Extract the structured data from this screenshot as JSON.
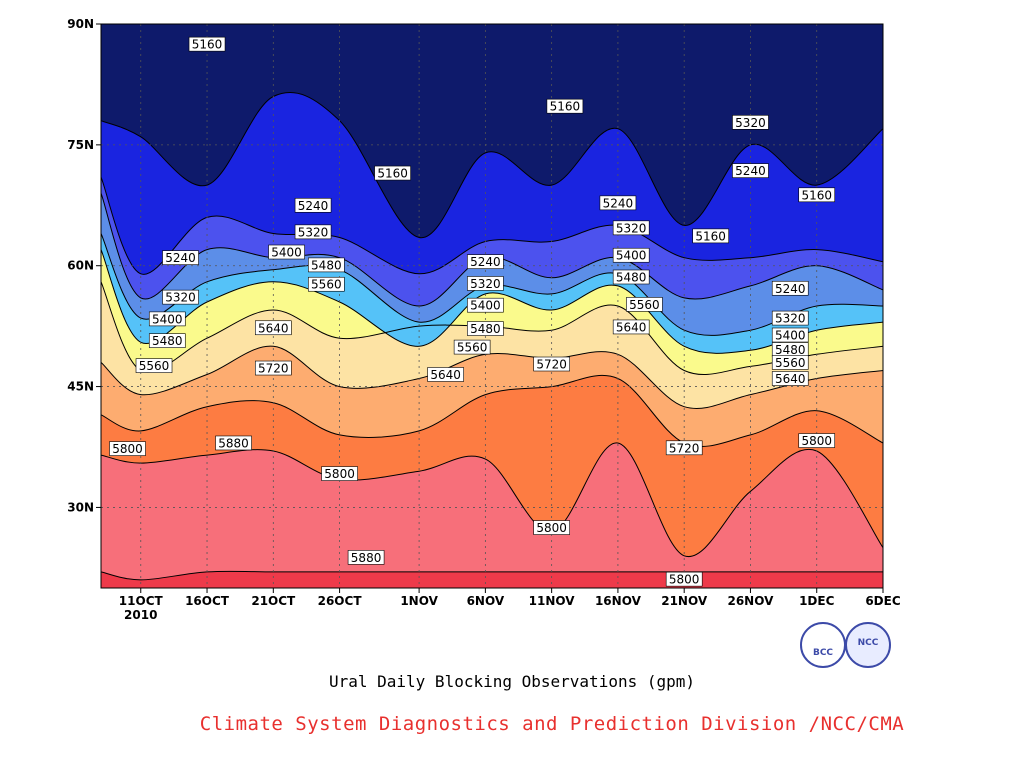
{
  "chart_data": {
    "type": "contour",
    "title": "Ural Daily Blocking Observations (gpm)",
    "x_tick_labels": [
      "11OCT",
      "16OCT",
      "21OCT",
      "26OCT",
      "1NOV",
      "6NOV",
      "11NOV",
      "16NOV",
      "21NOV",
      "26NOV",
      "1DEC",
      "6DEC"
    ],
    "x_year_label": "2010",
    "y_tick_labels": [
      "30N",
      "45N",
      "60N",
      "75N",
      "90N"
    ],
    "y_values": [
      30,
      45,
      60,
      75,
      90
    ],
    "ylim": [
      20,
      90
    ],
    "xlim": [
      "2010-10-08",
      "2010-12-06"
    ],
    "contour_levels": [
      5160,
      5240,
      5320,
      5400,
      5480,
      5560,
      5640,
      5720,
      5800,
      5880
    ],
    "fill_colors": [
      "#0e1a6b",
      "#1a24e0",
      "#4c52ee",
      "#5c8ee8",
      "#55c2f8",
      "#fafa8c",
      "#fde3a4",
      "#fdac70",
      "#fd7c42",
      "#f76f7a",
      "#ee3a4a"
    ],
    "isoline_dates": [
      "10-08",
      "10-11",
      "10-16",
      "10-21",
      "10-26",
      "11-01",
      "11-06",
      "11-11",
      "11-16",
      "11-21",
      "11-26",
      "12-01",
      "12-06"
    ],
    "isolines": [
      {
        "level": 5880,
        "lat": [
          22,
          21,
          22,
          22,
          22,
          22,
          22,
          22,
          22,
          22,
          22,
          22,
          22
        ]
      },
      {
        "level": 5800,
        "lat": [
          36.5,
          35.5,
          36.5,
          37,
          33.5,
          34.5,
          36,
          27,
          38,
          24,
          32,
          37,
          25
        ]
      },
      {
        "level": 5720,
        "lat": [
          41.5,
          39.5,
          42.5,
          43,
          39,
          39.5,
          44,
          45,
          46,
          38,
          39,
          42,
          38
        ]
      },
      {
        "level": 5640,
        "lat": [
          48,
          44,
          46.5,
          50,
          45,
          46,
          49,
          48.5,
          49,
          42.5,
          44,
          46,
          47
        ]
      },
      {
        "level": 5560,
        "lat": [
          58,
          47,
          51,
          54.5,
          51,
          52.5,
          52.5,
          52,
          55,
          47,
          47.5,
          49,
          50
        ]
      },
      {
        "level": 5480,
        "lat": [
          62,
          50.5,
          55.5,
          58,
          55.5,
          50,
          56.5,
          54.5,
          57.5,
          50,
          49.5,
          52,
          53
        ]
      },
      {
        "level": 5400,
        "lat": [
          64,
          53.5,
          58,
          59.5,
          59.5,
          53,
          57.5,
          56.5,
          59,
          52,
          52,
          55,
          55
        ]
      },
      {
        "level": 5320,
        "lat": [
          69,
          56,
          62,
          61,
          61,
          55,
          61,
          58.5,
          61,
          56,
          57.5,
          60,
          57
        ]
      },
      {
        "level": 5240,
        "lat": [
          71,
          59,
          66,
          64,
          63.5,
          59,
          63,
          63,
          65,
          61,
          61,
          62,
          60.5
        ]
      },
      {
        "level": 5160,
        "lat": [
          78,
          76,
          70,
          81,
          78,
          63.5,
          74,
          70,
          77,
          65,
          75,
          70,
          77
        ]
      }
    ],
    "contour_labels": [
      {
        "text": "5160",
        "date": "10-16",
        "lat": 87.5
      },
      {
        "text": "5160",
        "date": "10-30",
        "lat": 71.5
      },
      {
        "text": "5160",
        "date": "11-12",
        "lat": 79.8
      },
      {
        "text": "5160",
        "date": "11-23",
        "lat": 63.7
      },
      {
        "text": "5160",
        "date": "12-01",
        "lat": 68.8
      },
      {
        "text": "5240",
        "date": "10-14",
        "lat": 61
      },
      {
        "text": "5240",
        "date": "10-24",
        "lat": 67.5
      },
      {
        "text": "5240",
        "date": "11-06",
        "lat": 60.5
      },
      {
        "text": "5240",
        "date": "11-16",
        "lat": 67.8
      },
      {
        "text": "5240",
        "date": "11-26",
        "lat": 71.8
      },
      {
        "text": "5240",
        "date": "11-29",
        "lat": 57.2
      },
      {
        "text": "5320",
        "date": "10-14",
        "lat": 56.1
      },
      {
        "text": "5320",
        "date": "10-24",
        "lat": 64.2
      },
      {
        "text": "5320",
        "date": "11-06",
        "lat": 57.8
      },
      {
        "text": "5320",
        "date": "11-17",
        "lat": 64.7
      },
      {
        "text": "5320",
        "date": "11-26",
        "lat": 77.8
      },
      {
        "text": "5320",
        "date": "11-29",
        "lat": 53.5
      },
      {
        "text": "5400",
        "date": "10-13",
        "lat": 53.4
      },
      {
        "text": "5400",
        "date": "10-22",
        "lat": 61.7
      },
      {
        "text": "5400",
        "date": "11-06",
        "lat": 55.1
      },
      {
        "text": "5400",
        "date": "11-17",
        "lat": 61.3
      },
      {
        "text": "5400",
        "date": "11-29",
        "lat": 51.4
      },
      {
        "text": "5480",
        "date": "10-13",
        "lat": 50.7
      },
      {
        "text": "5480",
        "date": "10-25",
        "lat": 60.1
      },
      {
        "text": "5480",
        "date": "11-06",
        "lat": 52.2
      },
      {
        "text": "5480",
        "date": "11-17",
        "lat": 58.6
      },
      {
        "text": "5480",
        "date": "11-29",
        "lat": 49.6
      },
      {
        "text": "5560",
        "date": "10-12",
        "lat": 47.6
      },
      {
        "text": "5560",
        "date": "10-25",
        "lat": 57.7
      },
      {
        "text": "5560",
        "date": "11-05",
        "lat": 49.9
      },
      {
        "text": "5560",
        "date": "11-18",
        "lat": 55.2
      },
      {
        "text": "5560",
        "date": "11-29",
        "lat": 48
      },
      {
        "text": "5640",
        "date": "10-21",
        "lat": 52.3
      },
      {
        "text": "5640",
        "date": "11-03",
        "lat": 46.5
      },
      {
        "text": "5640",
        "date": "11-17",
        "lat": 52.4
      },
      {
        "text": "5640",
        "date": "11-29",
        "lat": 46
      },
      {
        "text": "5720",
        "date": "10-21",
        "lat": 47.3
      },
      {
        "text": "5720",
        "date": "11-11",
        "lat": 47.8
      },
      {
        "text": "5720",
        "date": "11-21",
        "lat": 37.4
      },
      {
        "text": "5800",
        "date": "10-10",
        "lat": 37.3
      },
      {
        "text": "5800",
        "date": "10-26",
        "lat": 34.2
      },
      {
        "text": "5800",
        "date": "11-11",
        "lat": 27.5
      },
      {
        "text": "5800",
        "date": "11-21",
        "lat": 21.1
      },
      {
        "text": "5800",
        "date": "12-01",
        "lat": 38.3
      },
      {
        "text": "5880",
        "date": "10-18",
        "lat": 38
      },
      {
        "text": "5880",
        "date": "10-28",
        "lat": 23.8
      }
    ],
    "grid": true
  },
  "subtitle": "Ural Daily Blocking Observations (gpm)",
  "credit": "Climate System Diagnostics and Prediction Division /NCC/CMA",
  "logos": {
    "left": "BCC",
    "right": "NCC"
  }
}
